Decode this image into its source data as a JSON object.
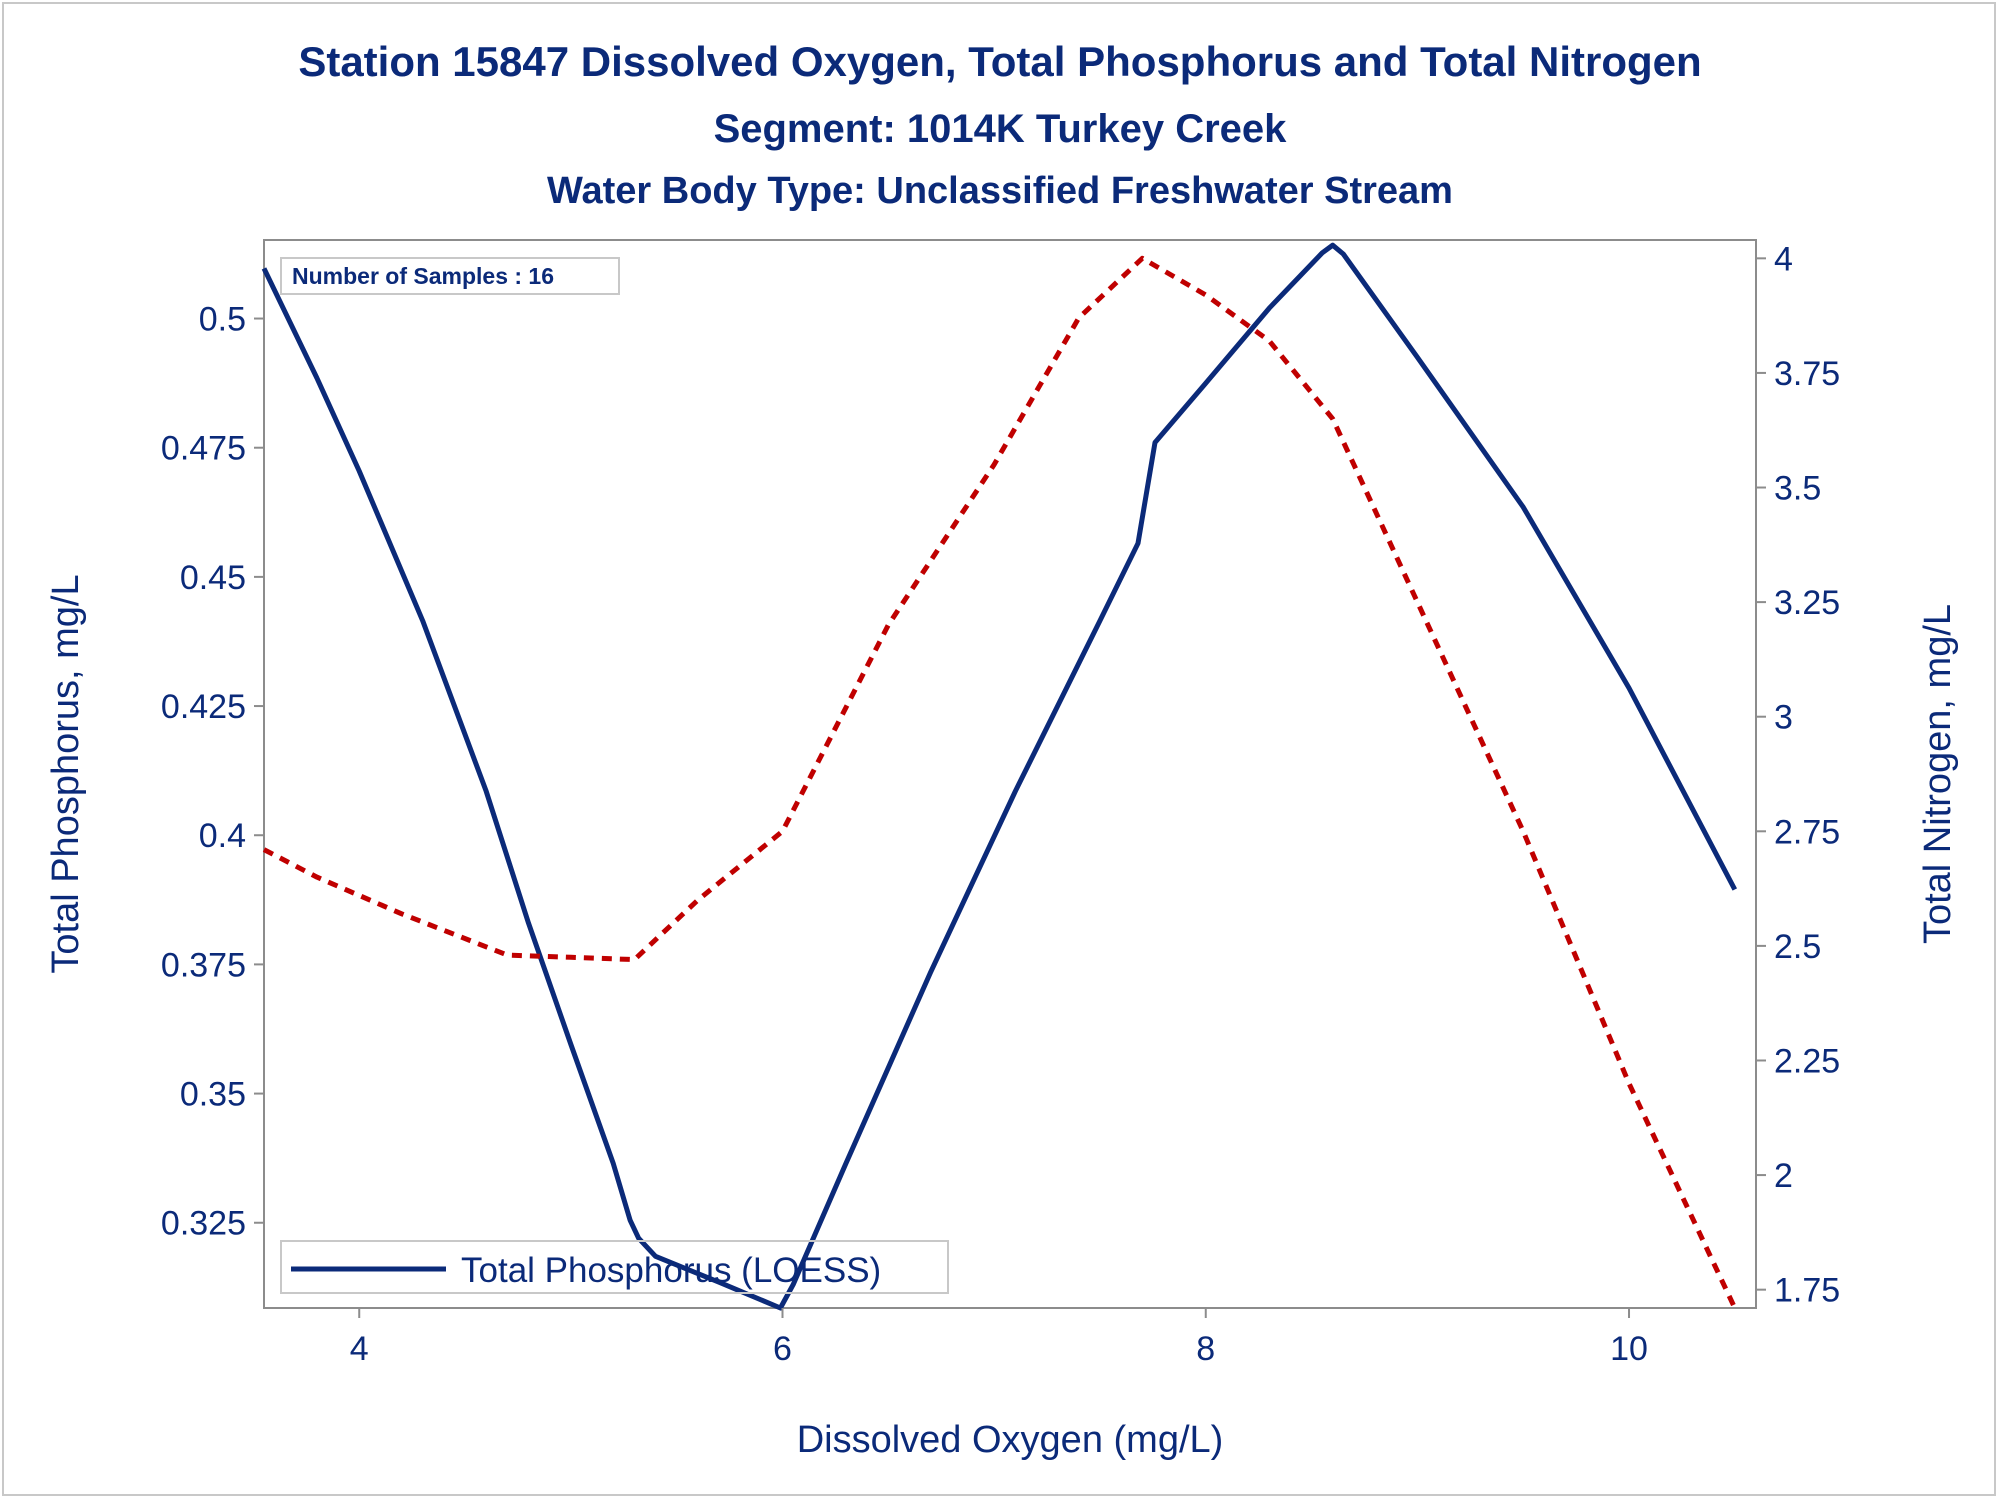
{
  "titles": {
    "line1": "Station 15847  Dissolved Oxygen, Total Phosphorus and Total Nitrogen",
    "line2": "Segment: 1014K  Turkey Creek",
    "line3": "Water Body Type: Unclassified Freshwater Stream"
  },
  "chart_data": {
    "type": "line",
    "annotation": "Number of Samples : 16",
    "xlabel": "Dissolved Oxygen (mg/L)",
    "ylabel_left": "Total Phosphorus, mg/L",
    "ylabel_right": "Total Nitrogen, mg/L",
    "xlim": [
      3.55,
      10.6
    ],
    "ylim_left": [
      0.3085,
      0.5152
    ],
    "ylim_right": [
      1.71,
      4.04
    ],
    "x_ticks": [
      4,
      6,
      8,
      10
    ],
    "y_left_ticks": [
      0.325,
      0.35,
      0.375,
      0.4,
      0.425,
      0.45,
      0.475,
      0.5
    ],
    "y_right_ticks": [
      1.75,
      2,
      2.25,
      2.5,
      2.75,
      3,
      3.25,
      3.5,
      3.75,
      4
    ],
    "legend": [
      "Total Phosphorus (LOESS)"
    ],
    "grid": false,
    "colors": {
      "phosphorus": "#0b2a79",
      "nitrogen": "#c00000",
      "text": "#0b2a79",
      "axis": "#8c8c8c"
    },
    "series": [
      {
        "name": "Total Phosphorus (LOESS)",
        "axis": "left",
        "style": "solid",
        "x": [
          3.55,
          3.8,
          4.0,
          4.3,
          4.6,
          4.8,
          5.0,
          5.2,
          5.28,
          5.32,
          5.4,
          5.7,
          5.99,
          6.05,
          6.3,
          6.7,
          7.1,
          7.5,
          7.68,
          7.76,
          8.0,
          8.3,
          8.55,
          8.6,
          8.65,
          9.0,
          9.5,
          10.0,
          10.5
        ],
        "values": [
          0.5097,
          0.4885,
          0.4705,
          0.4415,
          0.4085,
          0.383,
          0.3595,
          0.3365,
          0.3255,
          0.322,
          0.3185,
          0.3135,
          0.3085,
          0.313,
          0.3365,
          0.3735,
          0.4085,
          0.4415,
          0.4565,
          0.476,
          0.4875,
          0.502,
          0.5127,
          0.5142,
          0.5125,
          0.4925,
          0.4635,
          0.4285,
          0.3895
        ]
      },
      {
        "name": "Total Nitrogen",
        "axis": "right",
        "style": "dotted",
        "x": [
          3.55,
          3.8,
          4.2,
          4.7,
          5.0,
          5.3,
          5.6,
          6.0,
          6.5,
          7.0,
          7.4,
          7.7,
          8.0,
          8.3,
          8.6,
          9.0,
          9.5,
          10.0,
          10.5
        ],
        "values": [
          2.71,
          2.65,
          2.57,
          2.48,
          2.475,
          2.47,
          2.6,
          2.75,
          3.2,
          3.55,
          3.87,
          4.0,
          3.92,
          3.82,
          3.65,
          3.25,
          2.75,
          2.2,
          1.71
        ]
      }
    ]
  }
}
